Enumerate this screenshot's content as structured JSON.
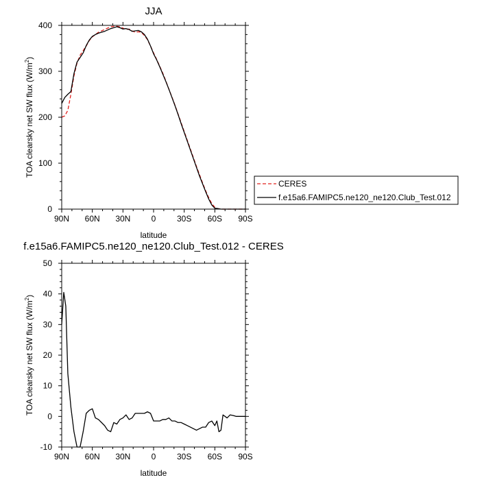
{
  "chart_data": [
    {
      "type": "line",
      "title": "JJA",
      "xlabel": "latitude",
      "ylabel": "TOA clearsky net SW flux (W/m",
      "ylabel_sup": "2",
      "ylabel_close": ")",
      "xlim": [
        90,
        -90
      ],
      "ylim": [
        0,
        400
      ],
      "xticks": [
        90,
        60,
        30,
        0,
        -30,
        -60,
        -90
      ],
      "xtick_labels": [
        "90N",
        "60N",
        "30N",
        "0",
        "30S",
        "60S",
        "90S"
      ],
      "yticks": [
        0,
        100,
        200,
        300,
        400
      ],
      "ytick_labels": [
        "0",
        "100",
        "200",
        "300",
        "400"
      ],
      "legend_position": "right",
      "series": [
        {
          "name": "CERES",
          "color": "#e0201c",
          "dash": "dashed",
          "x": [
            90,
            87,
            84,
            81,
            78,
            75,
            72,
            69,
            66,
            63,
            60,
            57,
            54,
            51,
            48,
            45,
            42,
            39,
            36,
            33,
            30,
            27,
            24,
            21,
            18,
            15,
            12,
            9,
            6,
            3,
            0,
            -3,
            -6,
            -9,
            -12,
            -15,
            -18,
            -21,
            -24,
            -27,
            -30,
            -33,
            -36,
            -39,
            -42,
            -45,
            -48,
            -51,
            -54,
            -57,
            -60,
            -63,
            -66,
            -69,
            -72,
            -75,
            -78,
            -81,
            -84,
            -87,
            -90
          ],
          "values": [
            200,
            203,
            215,
            250,
            290,
            318,
            335,
            345,
            355,
            367,
            375,
            380,
            385,
            388,
            391,
            394,
            397,
            398,
            398,
            397,
            394,
            391,
            392,
            388,
            385,
            386,
            385,
            378,
            369,
            355,
            340,
            326,
            311,
            296,
            279,
            261,
            244,
            226,
            207,
            188,
            169,
            150,
            131,
            112,
            93,
            75,
            57,
            40,
            25,
            12,
            4,
            1,
            0,
            0,
            0,
            0,
            0,
            0,
            0,
            0,
            0
          ]
        },
        {
          "name": "f.e15a6.FAMIPC5.ne120_ne120.Club_Test.012",
          "color": "#000000",
          "dash": "solid",
          "x": [
            90,
            87,
            84,
            81,
            78,
            75,
            72,
            69,
            66,
            63,
            60,
            57,
            54,
            51,
            48,
            45,
            42,
            39,
            36,
            33,
            30,
            27,
            24,
            21,
            18,
            15,
            12,
            9,
            6,
            3,
            0,
            -3,
            -6,
            -9,
            -12,
            -15,
            -18,
            -21,
            -24,
            -27,
            -30,
            -33,
            -36,
            -39,
            -42,
            -45,
            -48,
            -51,
            -54,
            -57,
            -60,
            -63,
            -66,
            -69,
            -72,
            -75,
            -78,
            -81,
            -84,
            -87,
            -90
          ],
          "values": [
            230,
            243,
            250,
            256,
            295,
            320,
            330,
            340,
            356,
            368,
            376,
            380,
            383,
            385,
            387,
            390,
            393,
            395,
            397,
            395,
            392,
            393,
            391,
            387,
            388,
            389,
            386,
            380,
            370,
            355,
            338,
            325,
            310,
            294,
            278,
            261,
            243,
            225,
            206,
            186,
            167,
            148,
            129,
            110,
            91,
            72,
            55,
            38,
            22,
            9,
            2,
            1,
            0,
            0,
            0,
            0,
            0,
            0,
            0,
            0,
            0
          ]
        }
      ]
    },
    {
      "type": "line",
      "title": "f.e15a6.FAMIPC5.ne120_ne120.Club_Test.012 - CERES",
      "xlabel": "latitude",
      "ylabel": "TOA clearsky net SW flux (W/m",
      "ylabel_sup": "2",
      "ylabel_close": ")",
      "xlim": [
        90,
        -90
      ],
      "ylim": [
        -10,
        50
      ],
      "xticks": [
        90,
        60,
        30,
        0,
        -30,
        -60,
        -90
      ],
      "xtick_labels": [
        "90N",
        "60N",
        "30N",
        "0",
        "30S",
        "60S",
        "90S"
      ],
      "yticks": [
        -10,
        0,
        10,
        20,
        30,
        40,
        50
      ],
      "ytick_labels": [
        "-10",
        "0",
        "10",
        "20",
        "30",
        "40",
        "50"
      ],
      "series": [
        {
          "color": "#000000",
          "dash": "solid",
          "x": [
            90,
            88,
            86,
            84,
            81,
            78,
            75,
            72,
            69,
            66,
            63,
            60,
            57,
            54,
            51,
            48,
            45,
            42,
            39,
            36,
            33,
            30,
            27,
            24,
            21,
            18,
            15,
            12,
            9,
            6,
            3,
            0,
            -3,
            -6,
            -9,
            -12,
            -15,
            -18,
            -21,
            -24,
            -27,
            -30,
            -33,
            -36,
            -39,
            -42,
            -45,
            -48,
            -51,
            -54,
            -57,
            -60,
            -62,
            -64,
            -66,
            -68,
            -70,
            -72,
            -75,
            -78,
            -81,
            -84,
            -87,
            -90
          ],
          "values": [
            30,
            40.5,
            36,
            14,
            3,
            -5,
            -10,
            -10,
            -5,
            1,
            2,
            2.5,
            -0.5,
            -1,
            -2,
            -3,
            -4.5,
            -5,
            -2,
            -2.5,
            -1,
            -0.5,
            0.5,
            -1,
            -0.5,
            1,
            1,
            1,
            1,
            1.5,
            1,
            -1.5,
            -1.5,
            -1.5,
            -1,
            -1,
            -0.5,
            -1.5,
            -1.5,
            -2,
            -2,
            -2.5,
            -3,
            -3.5,
            -4,
            -4.5,
            -4,
            -3.5,
            -3.5,
            -2,
            -1.5,
            -3,
            -1.5,
            -5,
            -4.5,
            0.5,
            0,
            -0.5,
            0.5,
            0.3,
            0,
            0,
            0,
            0
          ]
        }
      ]
    }
  ]
}
